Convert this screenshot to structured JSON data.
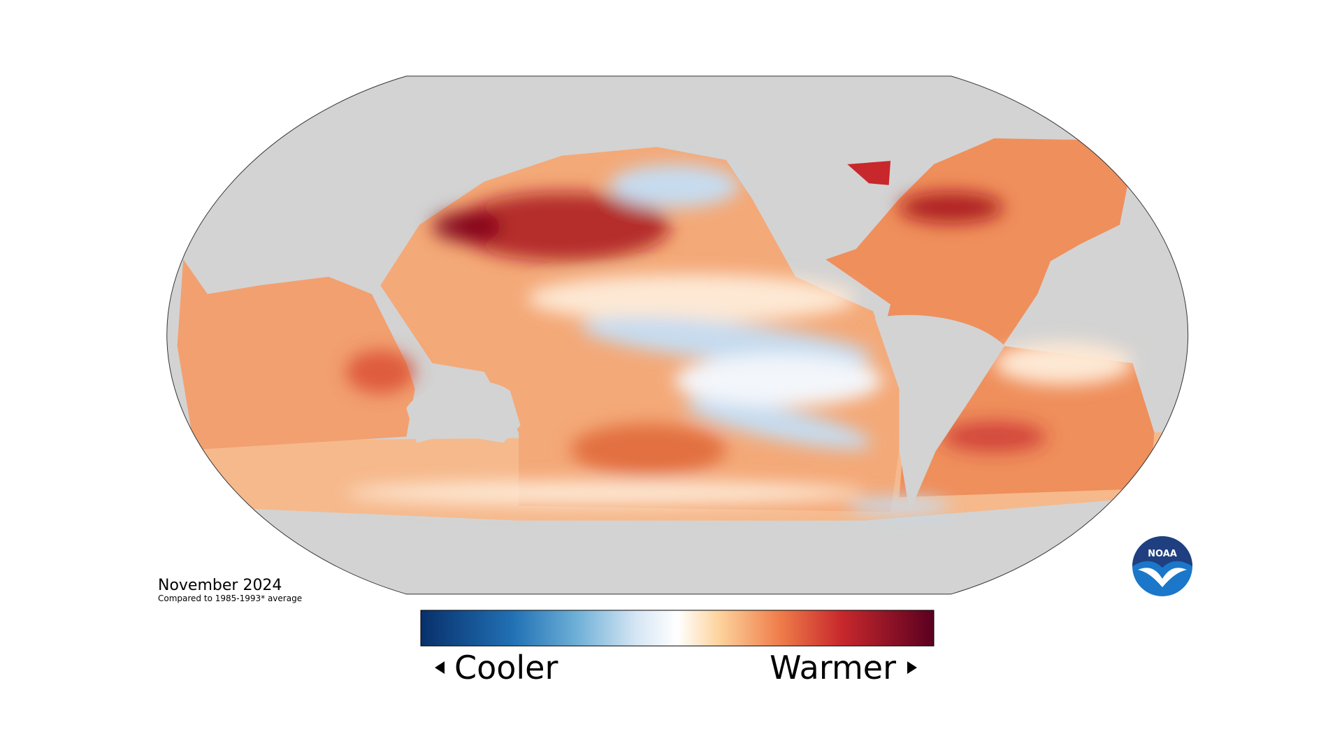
{
  "map": {
    "date": "November 2024",
    "subtitle": "Compared to 1985-1993* average"
  },
  "legend": {
    "low_label": "Cooler",
    "high_label": "Warmer"
  },
  "logo": {
    "text": "NOAA"
  }
}
